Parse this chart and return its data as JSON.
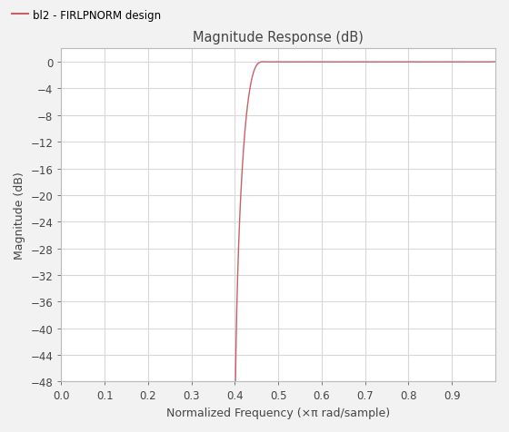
{
  "title": "Magnitude Response (dB)",
  "xlabel": "Normalized Frequency (×π rad/sample)",
  "ylabel": "Magnitude (dB)",
  "legend_label": "bl2 - FIRLPNORM design",
  "line_color": "#c8606a",
  "background_color": "#f2f2f2",
  "axes_background": "#ffffff",
  "grid_color": "#d8d8d8",
  "xlim": [
    0,
    1
  ],
  "ylim": [
    -48,
    2
  ],
  "yticks": [
    0,
    -4,
    -8,
    -12,
    -16,
    -20,
    -24,
    -28,
    -32,
    -36,
    -40,
    -44,
    -48
  ],
  "xticks": [
    0,
    0.1,
    0.2,
    0.3,
    0.4,
    0.5,
    0.6,
    0.7,
    0.8,
    0.9
  ],
  "figsize": [
    5.6,
    4.77
  ],
  "dpi": 100
}
